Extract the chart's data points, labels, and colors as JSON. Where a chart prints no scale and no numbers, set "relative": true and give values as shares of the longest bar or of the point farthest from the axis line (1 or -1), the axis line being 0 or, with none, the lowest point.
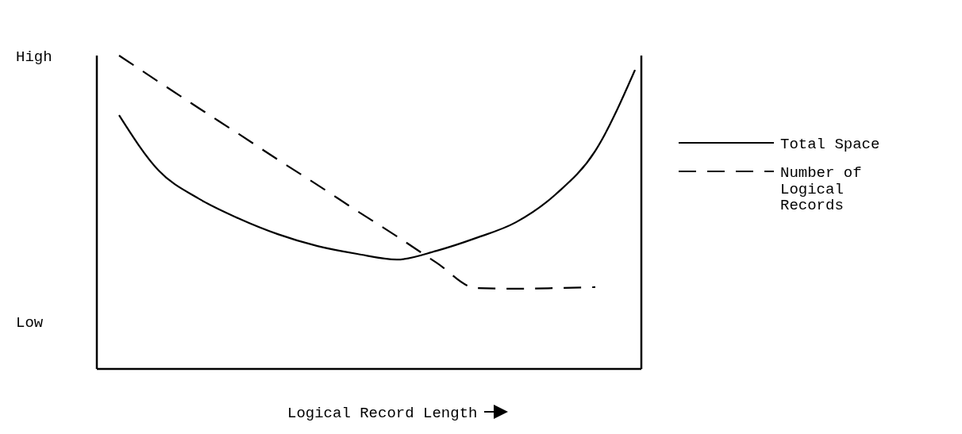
{
  "chart_data": {
    "type": "line",
    "relative": true,
    "xlabel": "Logical Record Length",
    "annotations": [
      "High",
      "Low"
    ],
    "legend": "right",
    "categories": [
      null,
      null,
      null,
      null,
      null,
      null,
      null,
      null,
      null,
      null,
      null,
      null,
      null,
      null
    ],
    "series": [
      {
        "name": "Total Space",
        "color": "#000000",
        "line_style": "solid",
        "values": [
          0.81,
          0.633,
          0.544,
          0.481,
          0.43,
          0.392,
          0.367,
          0.349,
          0.377,
          0.418,
          0.468,
          0.557,
          0.696,
          0.954
        ]
      },
      {
        "name": "Number of Logical Records",
        "color": "#000000",
        "line_style": "dashed",
        "values": [
          1,
          0.916,
          0.833,
          0.751,
          0.668,
          0.587,
          0.504,
          0.423,
          0.339,
          0.258,
          0.256,
          0.258,
          0.261,
          null
        ]
      }
    ]
  }
}
